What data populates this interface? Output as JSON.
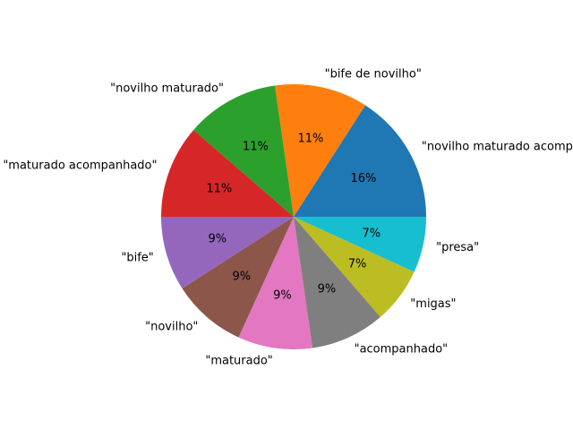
{
  "chart_data": {
    "type": "pie",
    "title": "",
    "categories": [
      "\"novilho maturado acompanhado\"",
      "\"bife de novilho\"",
      "\"novilho maturado\"",
      "\"maturado acompanhado\"",
      "\"bife\"",
      "\"novilho\"",
      "\"maturado\"",
      "\"acompanhado\"",
      "\"migas\"",
      "\"presa\""
    ],
    "values": [
      7,
      5,
      5,
      5,
      4,
      4,
      4,
      4,
      3,
      3
    ],
    "pct_labels": [
      "16%",
      "11%",
      "11%",
      "11%",
      "9%",
      "9%",
      "9%",
      "9%",
      "7%",
      "7%"
    ],
    "colors": [
      "#1f77b4",
      "#ff7f0e",
      "#2ca02c",
      "#d62728",
      "#9467bd",
      "#8c564b",
      "#e377c2",
      "#7f7f7f",
      "#bcbd22",
      "#17becf"
    ],
    "start_angle_deg": 0,
    "direction": "counterclockwise",
    "legend": "none"
  }
}
